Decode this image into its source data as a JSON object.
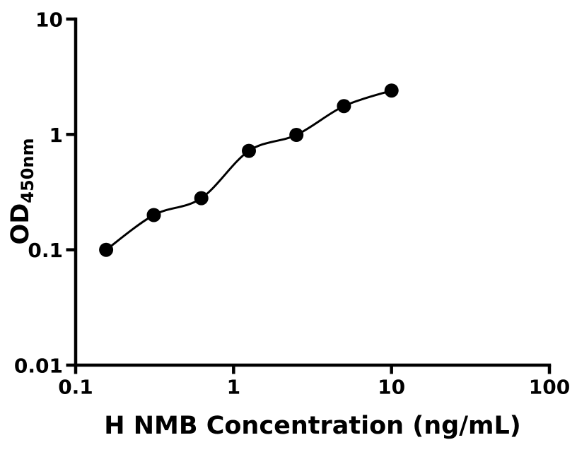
{
  "figure": {
    "background_color": "#ffffff",
    "ink_color": "#000000"
  },
  "chart_data": {
    "type": "scatter",
    "xlabel": "H NMB Concentration (ng/mL)",
    "ylabel": "OD",
    "ylabel_subscript": "450nm",
    "xscale": "log",
    "yscale": "log",
    "xlim": [
      0.1,
      100
    ],
    "ylim": [
      0.01,
      10
    ],
    "grid": false,
    "legend": "none",
    "x_ticks": [
      {
        "value": 0.1,
        "label": "0.1"
      },
      {
        "value": 1,
        "label": "1"
      },
      {
        "value": 10,
        "label": "10"
      },
      {
        "value": 100,
        "label": "100"
      }
    ],
    "y_ticks": [
      {
        "value": 0.01,
        "label": "0.01"
      },
      {
        "value": 0.1,
        "label": "0.1"
      },
      {
        "value": 1,
        "label": "1"
      },
      {
        "value": 10,
        "label": "10"
      }
    ],
    "series": [
      {
        "marker": "filled-circle",
        "marker_color": "#000000",
        "line": "4PL-fit-curve",
        "line_color": "#000000",
        "points": [
          {
            "x": 0.156,
            "y": 0.1
          },
          {
            "x": 0.3125,
            "y": 0.2
          },
          {
            "x": 0.625,
            "y": 0.28
          },
          {
            "x": 1.25,
            "y": 0.72
          },
          {
            "x": 2.5,
            "y": 0.99
          },
          {
            "x": 5,
            "y": 1.76
          },
          {
            "x": 10,
            "y": 2.4
          }
        ]
      }
    ]
  }
}
